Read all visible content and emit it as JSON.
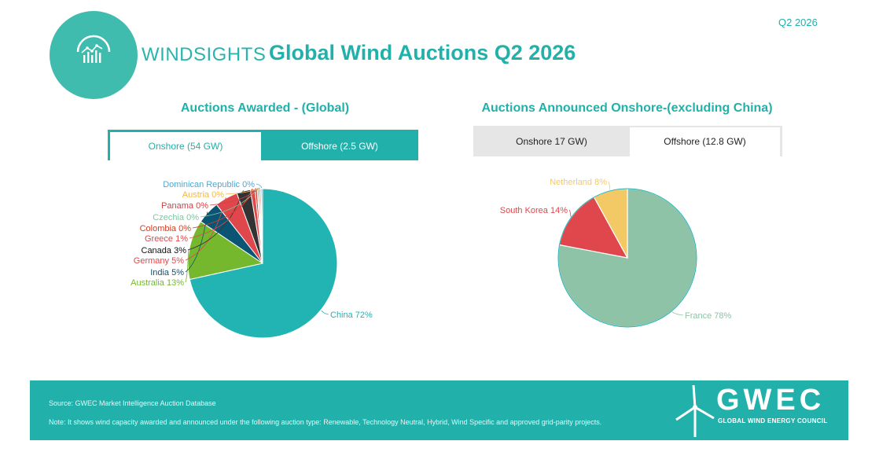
{
  "header": {
    "brand": "WINDSIGHTS",
    "title": "Global Wind Auctions Q2 2026",
    "period": "Q2 2026"
  },
  "left_panel": {
    "title": "Auctions Awarded - (Global)",
    "tabs": [
      "Onshore (54 GW)",
      "Offshore (2.5 GW)"
    ],
    "selected_tab": "Onshore (54 GW)"
  },
  "right_panel": {
    "title": "Auctions Announced Onshore-(excluding China)",
    "tabs": [
      "Onshore 17 GW)",
      "Offshore (12.8 GW)"
    ],
    "selected_tab": "Offshore (12.8 GW)"
  },
  "chart_data": [
    {
      "type": "pie",
      "slices": [
        {
          "label": "China",
          "display": "China 72%",
          "value": 72.0,
          "color": "#22b3b3"
        },
        {
          "label": "Australia",
          "display": "Australia 13%",
          "value": 13.0,
          "color": "#75b82e"
        },
        {
          "label": "India",
          "display": "India 5%",
          "value": 5.0,
          "color": "#0a5573"
        },
        {
          "label": "Germany",
          "display": "Germany 5%",
          "value": 5.0,
          "color": "#e0474c"
        },
        {
          "label": "Canada",
          "display": "Canada 3%",
          "value": 3.0,
          "color": "#333333"
        },
        {
          "label": "Greece",
          "display": "Greece 1%",
          "value": 1.0,
          "color": "#e0474c"
        },
        {
          "label": "Colombia",
          "display": "Colombia 0%",
          "value": 0.45,
          "color": "#d04127"
        },
        {
          "label": "Czechia",
          "display": "Czechia 0%",
          "value": 0.3,
          "color": "#83c3a5"
        },
        {
          "label": "Panama",
          "display": "Panama 0%",
          "value": 0.3,
          "color": "#d64043"
        },
        {
          "label": "Austria",
          "display": "Austria 0%",
          "value": 0.3,
          "color": "#f0b84c"
        },
        {
          "label": "Dominican Republic",
          "display": "Dominican Republic 0%",
          "value": 0.3,
          "color": "#4fa8d8"
        }
      ]
    },
    {
      "type": "pie",
      "slices": [
        {
          "label": "France",
          "display": "France 78%",
          "value": 78,
          "color": "#8fc3a8"
        },
        {
          "label": "South Korea",
          "display": "South Korea 14%",
          "value": 14,
          "color": "#e0474c"
        },
        {
          "label": "Netherland",
          "display": "Netherland 8%",
          "value": 8,
          "color": "#f3c966"
        }
      ]
    }
  ],
  "footer": {
    "source": "Source: GWEC Market Intelligence Auction Database",
    "note": "Note: It shows wind capacity awarded and announced under the following auction type: Renewable, Technology Neutral, Hybrid, Wind Specific and approved grid-parity projects.",
    "logo_word": "GWEC",
    "logo_sub": "GLOBAL WIND ENERGY COUNCIL"
  }
}
